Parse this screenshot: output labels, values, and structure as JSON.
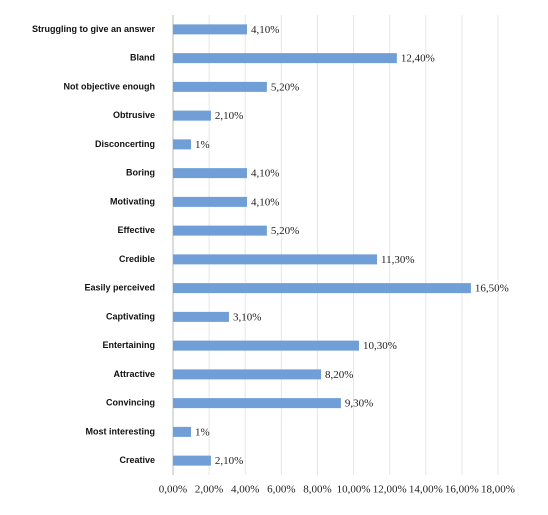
{
  "chart_data": {
    "type": "bar",
    "orientation": "horizontal",
    "color": "#6f9fd6",
    "grid": true,
    "categories": [
      "Struggling to give an answer",
      "Bland",
      "Not objective enough",
      "Obtrusive",
      "Disconcerting",
      "Boring",
      "Motivating",
      "Effective",
      "Credible",
      "Easily perceived",
      "Captivating",
      "Entertaining",
      "Attractive",
      "Convincing",
      "Most interesting",
      "Creative"
    ],
    "values": [
      4.1,
      12.4,
      5.2,
      2.1,
      1,
      4.1,
      4.1,
      5.2,
      11.3,
      16.5,
      3.1,
      10.3,
      8.2,
      9.3,
      1,
      2.1
    ],
    "value_labels": [
      "4,10%",
      "12,40%",
      "5,20%",
      "2,10%",
      "1%",
      "4,10%",
      "4,10%",
      "5,20%",
      "11,30%",
      "16,50%",
      "3,10%",
      "10,30%",
      "8,20%",
      "9,30%",
      "1%",
      "2,10%"
    ],
    "xlim": [
      0,
      18
    ],
    "xticks": [
      {
        "value": 0,
        "label": "0,00%"
      },
      {
        "value": 2,
        "label": "2,00%"
      },
      {
        "value": 4,
        "label": "4,00%"
      },
      {
        "value": 6,
        "label": "6,00%"
      },
      {
        "value": 8,
        "label": "8,00%"
      },
      {
        "value": 10,
        "label": "10,00%"
      },
      {
        "value": 12,
        "label": "12,00%"
      },
      {
        "value": 14,
        "label": "14,00%"
      },
      {
        "value": 16,
        "label": "16,00%"
      },
      {
        "value": 18,
        "label": "18,00%"
      }
    ]
  }
}
